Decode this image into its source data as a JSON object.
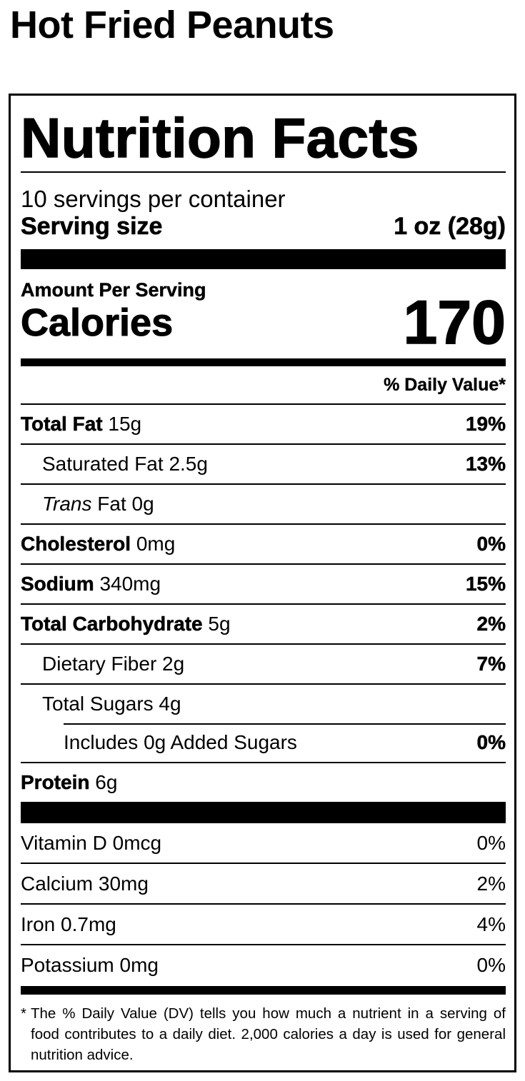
{
  "product_name": "Hot Fried Peanuts",
  "label": {
    "heading": "Nutrition Facts",
    "servings_per_container": "10 servings per container",
    "serving_size_label": "Serving size",
    "serving_size_value": "1 oz (28g)",
    "amount_per_serving": "Amount Per Serving",
    "calories_label": "Calories",
    "calories_value": "170",
    "daily_value_header": "% Daily Value*",
    "nutrients": [
      {
        "name": "Total Fat",
        "amount": "15g",
        "dv": "19%"
      },
      {
        "name": "Saturated Fat",
        "amount": "2.5g",
        "dv": "13%"
      },
      {
        "name_italic": "Trans",
        "name": "Fat",
        "amount": "0g",
        "dv": ""
      },
      {
        "name": "Cholesterol",
        "amount": "0mg",
        "dv": "0%"
      },
      {
        "name": "Sodium",
        "amount": "340mg",
        "dv": "15%"
      },
      {
        "name": "Total Carbohydrate",
        "amount": "5g",
        "dv": "2%"
      },
      {
        "name": "Dietary Fiber",
        "amount": "2g",
        "dv": "7%"
      },
      {
        "name": "Total Sugars",
        "amount": "4g",
        "dv": ""
      },
      {
        "name": "Includes 0g Added Sugars",
        "amount": "",
        "dv": "0%"
      },
      {
        "name": "Protein",
        "amount": "6g",
        "dv": ""
      }
    ],
    "vitamins": [
      {
        "name": "Vitamin D 0mcg",
        "dv": "0%"
      },
      {
        "name": "Calcium 30mg",
        "dv": "2%"
      },
      {
        "name": "Iron 0.7mg",
        "dv": "4%"
      },
      {
        "name": "Potassium 0mg",
        "dv": "0%"
      }
    ],
    "footnote_star": "*",
    "footnote": "The % Daily Value (DV) tells you how much a nutrient in a serving of food contributes to a daily diet. 2,000 calories a day is used for general nutrition advice."
  }
}
